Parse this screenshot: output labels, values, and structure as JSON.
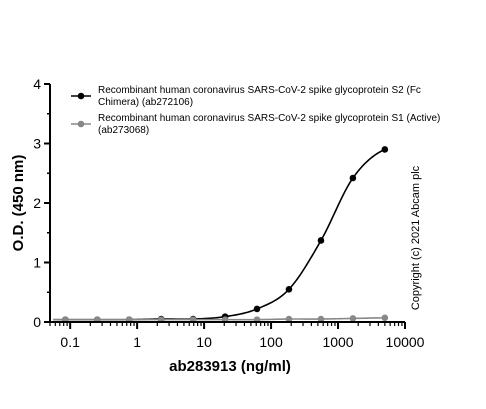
{
  "chart_data": {
    "type": "scatter",
    "xlabel": "ab283913 (ng/ml)",
    "ylabel": "O.D. (450 nm)",
    "xscale": "log",
    "xlim": [
      0.05,
      10000
    ],
    "ylim": [
      0,
      4
    ],
    "x_ticks": [
      0.1,
      1,
      10,
      100,
      1000,
      10000
    ],
    "x_tick_labels": [
      "0.1",
      "1",
      "10",
      "100",
      "1000",
      "10000"
    ],
    "y_ticks": [
      0,
      1,
      2,
      3,
      4
    ],
    "y_tick_labels": [
      "0",
      "1",
      "2",
      "3",
      "4"
    ],
    "legend_position": "top-right",
    "series": [
      {
        "name": "Recombinant human coronavirus SARS-CoV-2 spike glycoprotein S2 (Fc Chimera) (ab272106)",
        "legend_lines": [
          "Recombinant human coronavirus SARS-CoV-2 spike glycoprotein S2 (Fc",
          "Chimera) (ab272106)"
        ],
        "color": "#000000",
        "fit": "sigmoid",
        "x": [
          0.0847,
          0.254,
          0.762,
          2.29,
          6.86,
          20.6,
          61.7,
          185,
          556,
          1667,
          5000
        ],
        "y": [
          0.04,
          0.04,
          0.04,
          0.05,
          0.05,
          0.09,
          0.22,
          0.55,
          1.37,
          2.42,
          2.9
        ]
      },
      {
        "name": "Recombinant human coronavirus SARS-CoV-2 spike glycoprotein S1 (Active) (ab273068)",
        "legend_lines": [
          "Recombinant human coronavirus SARS-CoV-2 spike glycoprotein S1 (Active)",
          "(ab273068)"
        ],
        "color": "#888888",
        "fit": "line",
        "x": [
          0.0847,
          0.254,
          0.762,
          2.29,
          6.86,
          20.6,
          61.7,
          185,
          556,
          1667,
          5000
        ],
        "y": [
          0.04,
          0.04,
          0.04,
          0.04,
          0.04,
          0.04,
          0.04,
          0.05,
          0.05,
          0.06,
          0.07
        ]
      }
    ],
    "watermark": "Copyright (c) 2021 Abcam plc"
  }
}
